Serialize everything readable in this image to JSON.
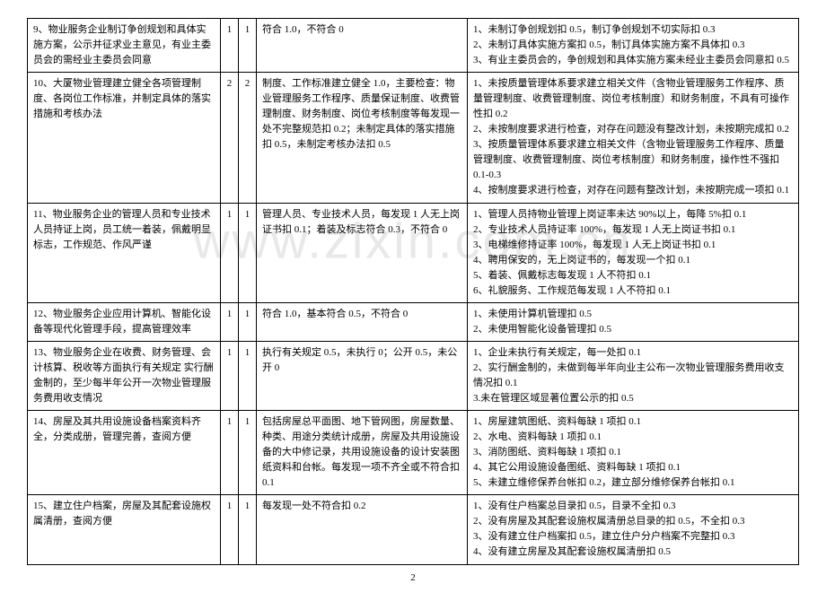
{
  "watermark": "www.zixin.com.cn",
  "page_number": "2",
  "rows": [
    {
      "item": "9、物业服务企业制订争创规划和具体实施方案，公示并征求业主意见，有业主委员会的需经业主委员会同意",
      "c2": "1",
      "c3": "1",
      "criteria": "符合 1.0，不符合 0",
      "deduction": "1、未制订争创规划扣 0.5，制订争创规划不切实际扣 0.3\n2、未制订具体实施方案扣 0.5，制订具体实施方案不具体扣 0.3\n3、有业主委员会的，争创规划和具体实施方案未经业主委员会同意扣 0.5"
    },
    {
      "item": "10、大厦物业管理建立健全各项管理制度、各岗位工作标准，并制定具体的落实措施和考核办法",
      "c2": "2",
      "c3": "2",
      "criteria": "制度、工作标准建立健全 1.0，主要检查：物业管理服务工作程序、质量保证制度、收费管理制度、财务制度、岗位考核制度等每发现一处不完整规范扣 0.2；未制定具体的落实措施扣 0.5，未制定考核办法扣 0.5",
      "deduction": "1、未按质量管理体系要求建立相关文件（含物业管理服务工作程序、质量管理制度、收费管理制度、岗位考核制度）和财务制度，不具有可操作性扣 0.2\n2、未按制度要求进行检查，对存在问题没有整改计划，未按期完成扣 0.2\n3、按质量管理体系要求建立相关文件（含物业管理服务工作程序、质量管理制度、收费管理制度、岗位考核制度）和财务制度，操作性不强扣 0.1-0.3\n4、按制度要求进行检查，对存在问题有整改计划，未按期完成一项扣 0.1"
    },
    {
      "item": "11、物业服务企业的管理人员和专业技术人员持证上岗，员工统一着装，佩戴明显标志，工作规范、作风严谨",
      "c2": "1",
      "c3": "1",
      "criteria": "管理人员、专业技术人员，每发现 1 人无上岗证书扣 0.1；着装及标志符合 0.3，不符合 0",
      "deduction": "1、管理人员持物业管理上岗证率未达 90%以上，每降 5%扣 0.1\n2、专业技术人员持证率 100%，每发现 1 人无上岗证书扣 0.1\n3、电梯维修持证率 100%，每发现 1 人无上岗证书扣 0.1\n4、聘用保安的，无上岗证书的，每发现一个扣 0.1\n5、着装、佩戴标志每发现 1 人不符扣 0.1\n6、礼貌服务、工作规范每发现 1 人不符扣 0.1"
    },
    {
      "item": "12、物业服务企业应用计算机、智能化设备等现代化管理手段，提高管理效率",
      "c2": "1",
      "c3": "1",
      "criteria": "符合 1.0，基本符合 0.5，不符合 0",
      "deduction": "1、未使用计算机管理扣 0.5\n2、未使用智能化设备管理扣 0.5"
    },
    {
      "item": "13、物业服务企业在收费、财务管理、会计核算、税收等方面执行有关规定  实行酬金制的，至少每半年公开一次物业管理服务费用收支情况",
      "c2": "1",
      "c3": "1",
      "criteria": "执行有关规定 0.5，未执行 0；公开 0.5，未公开 0",
      "deduction": "1、企业未执行有关规定，每一处扣 0.1\n2、实行酬金制的，未做到每半年向业主公布一次物业管理服务费用收支情况扣 0.1\n3.未在管理区域显著位置公示的扣 0.5"
    },
    {
      "item": "14、房屋及其共用设施设备档案资料齐全，分类成册，管理完善，查阅方便",
      "c2": "1",
      "c3": "1",
      "criteria": "包括房屋总平面图、地下管网图，房屋数量、种类、用途分类统计成册，房屋及共用设施设备的大中修记录，共用设施设备的设计安装图纸资料和台帐。每发现一项不齐全或不符合扣 0.1",
      "deduction": "1、房屋建筑图纸、资料每缺 1 项扣 0.1\n2、水电、资料每缺 1 项扣 0.1\n3、消防图纸、资料每缺 1 项扣 0.1\n4、其它公用设施设备图纸、资料每缺 1 项扣 0.1\n5、未建立维修保养台帐扣 0.2，建立部分维修保养台帐扣 0.1"
    },
    {
      "item": "15、建立住户档案，房屋及其配套设施权属清册，查阅方便",
      "c2": "1",
      "c3": "1",
      "criteria": "每发现一处不符合扣 0.2",
      "deduction": "1、没有住户档案总目录扣 0.5，目录不全扣 0.3\n2、没有房屋及其配套设施权属清册总目录的扣 0.5，不全扣 0.3\n3、没有建立住户档案扣 0.5，建立住户分户档案不完整扣 0.3\n4、没有建立房屋及其配套设施权属清册扣 0.5"
    }
  ]
}
